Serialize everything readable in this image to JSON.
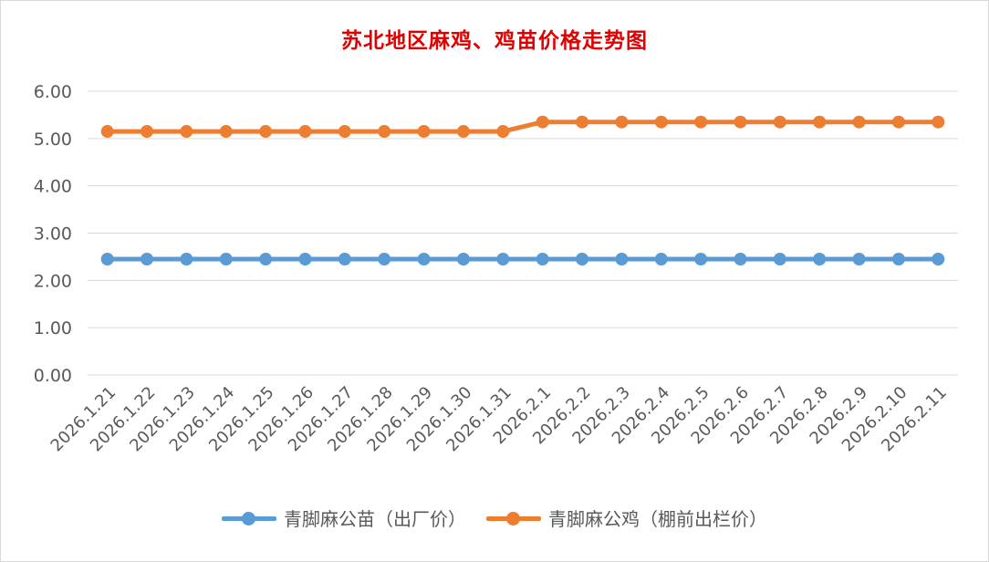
{
  "chart_data": {
    "type": "line",
    "title": "苏北地区麻鸡、鸡苗价格走势图",
    "xlabel": "",
    "ylabel": "",
    "ylim": [
      0,
      6
    ],
    "y_ticks": [
      "0.00",
      "1.00",
      "2.00",
      "3.00",
      "4.00",
      "5.00",
      "6.00"
    ],
    "grid": true,
    "legend_position": "bottom",
    "categories": [
      "2026.1.21",
      "2026.1.22",
      "2026.1.23",
      "2026.1.24",
      "2026.1.25",
      "2026.1.26",
      "2026.1.27",
      "2026.1.28",
      "2026.1.29",
      "2026.1.30",
      "2026.1.31",
      "2026.2.1",
      "2026.2.2",
      "2026.2.3",
      "2026.2.4",
      "2026.2.5",
      "2026.2.6",
      "2026.2.7",
      "2026.2.8",
      "2026.2.9",
      "2026.2.10",
      "2026.2.11"
    ],
    "series": [
      {
        "name": "青脚麻公苗（出厂价）",
        "color": "#5b9bd5",
        "values": [
          2.45,
          2.45,
          2.45,
          2.45,
          2.45,
          2.45,
          2.45,
          2.45,
          2.45,
          2.45,
          2.45,
          2.45,
          2.45,
          2.45,
          2.45,
          2.45,
          2.45,
          2.45,
          2.45,
          2.45,
          2.45,
          2.45
        ]
      },
      {
        "name": "青脚麻公鸡（棚前出栏价）",
        "color": "#ed7d31",
        "values": [
          5.15,
          5.15,
          5.15,
          5.15,
          5.15,
          5.15,
          5.15,
          5.15,
          5.15,
          5.15,
          5.15,
          5.35,
          5.35,
          5.35,
          5.35,
          5.35,
          5.35,
          5.35,
          5.35,
          5.35,
          5.35,
          5.35
        ]
      }
    ],
    "colors": {
      "title": "#e00000",
      "grid": "#d9d9d9",
      "tick_text": "#595959"
    }
  }
}
